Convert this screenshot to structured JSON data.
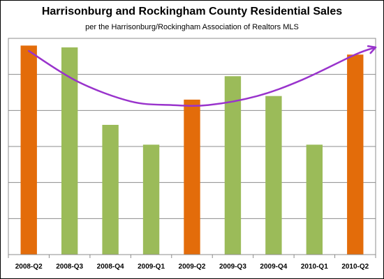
{
  "chart_data": {
    "type": "bar",
    "title": "Harrisonburg and Rockingham County Residential Sales",
    "subtitle": "per the Harrisonburg/Rockingham Association of Realtors MLS",
    "categories": [
      "2008-Q2",
      "2008-Q3",
      "2008-Q4",
      "2009-Q1",
      "2009-Q2",
      "2009-Q3",
      "2009-Q4",
      "2010-Q1",
      "2010-Q2"
    ],
    "values": [
      5.8,
      5.75,
      3.6,
      3.05,
      4.3,
      4.95,
      4.4,
      3.05,
      5.55
    ],
    "bar_colors": [
      "#E36C0A",
      "#9BBB59",
      "#9BBB59",
      "#9BBB59",
      "#E36C0A",
      "#9BBB59",
      "#9BBB59",
      "#9BBB59",
      "#E36C0A"
    ],
    "ylim": [
      0,
      6
    ],
    "yticks_count": 6,
    "grid": true,
    "trend_curve": {
      "color": "#9933CC",
      "arrow": true,
      "points": [
        [
          0,
          5.65
        ],
        [
          1.2,
          4.8
        ],
        [
          2.5,
          4.25
        ],
        [
          3.5,
          4.15
        ],
        [
          4.4,
          4.15
        ],
        [
          5.6,
          4.4
        ],
        [
          6.7,
          4.85
        ],
        [
          8,
          5.55
        ],
        [
          8.5,
          5.75
        ]
      ]
    }
  }
}
